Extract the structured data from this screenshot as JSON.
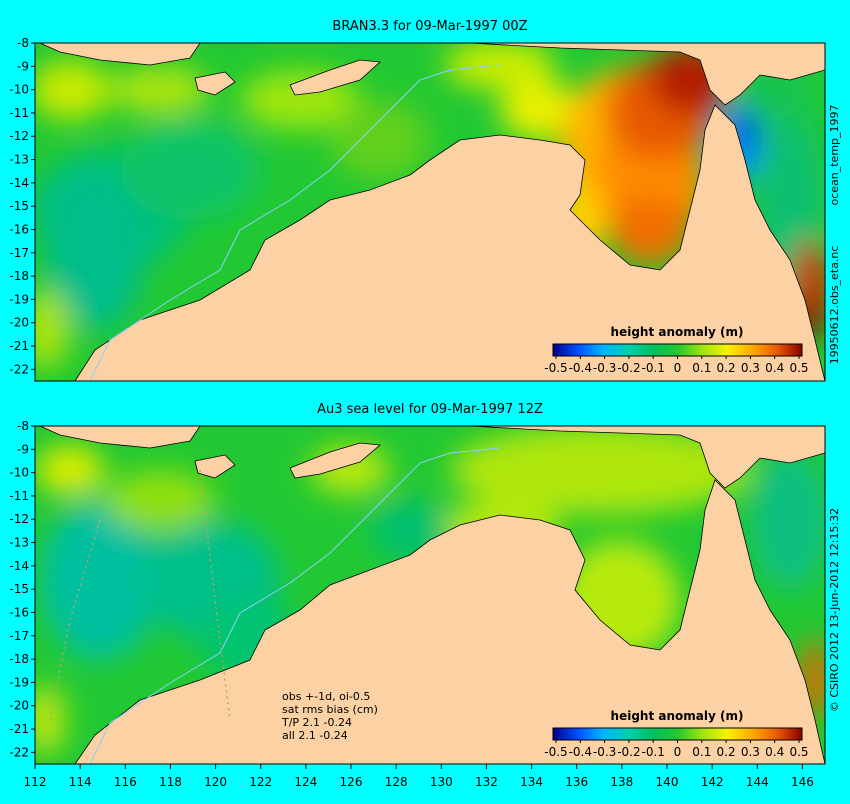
{
  "colors": {
    "page_background": "#00ffff",
    "land": "#fcd1a4",
    "coast": "#000000",
    "isobath": "#8ad0ff",
    "obs_track": "#b9a26b"
  },
  "panels": [
    {
      "id": "top",
      "title": "BRAN3.3 for 09-Mar-1997 00Z",
      "legend": {
        "title": "height anomaly (m)",
        "ticks": [
          "-0.5",
          "-0.4",
          "-0.3",
          "-0.2",
          "-0.1",
          "0",
          "0.1",
          "0.2",
          "0.3",
          "0.4",
          "0.5"
        ]
      },
      "side_labels": [
        "ocean_temp_1997",
        "19950612.obs_eta.nc"
      ]
    },
    {
      "id": "bottom",
      "title": "Au3 sea level  for 09-Mar-1997 12Z",
      "legend": {
        "title": "height anomaly (m)",
        "ticks": [
          "-0.5",
          "-0.4",
          "-0.3",
          "-0.2",
          "-0.1",
          "0",
          "0.1",
          "0.2",
          "0.3",
          "0.4",
          "0.5"
        ]
      },
      "side_labels": [
        "© CSIRO 2012  13-Jun-2012 12:15:32"
      ],
      "stats": [
        "obs +-1d, oi-0.5",
        "sat rms bias (cm)",
        "T/P  2.1 -0.24",
        "all 2.1 -0.24"
      ]
    }
  ],
  "axes": {
    "lon_ticks": [
      "112",
      "114",
      "116",
      "118",
      "120",
      "122",
      "124",
      "126",
      "128",
      "130",
      "132",
      "134",
      "136",
      "138",
      "140",
      "142",
      "144",
      "146"
    ],
    "lat_ticks": [
      "-8",
      "-9",
      "-10",
      "-11",
      "-12",
      "-13",
      "-14",
      "-15",
      "-16",
      "-17",
      "-18",
      "-19",
      "-20",
      "-21",
      "-22"
    ],
    "lon_range": [
      112,
      147
    ],
    "lat_range": [
      -22.5,
      -8
    ]
  },
  "chart_data": {
    "type": "heatmap",
    "xlim": [
      112,
      147
    ],
    "ylim": [
      -22.5,
      -8
    ],
    "colorbar_range": [
      -0.5,
      0.5
    ]
  }
}
